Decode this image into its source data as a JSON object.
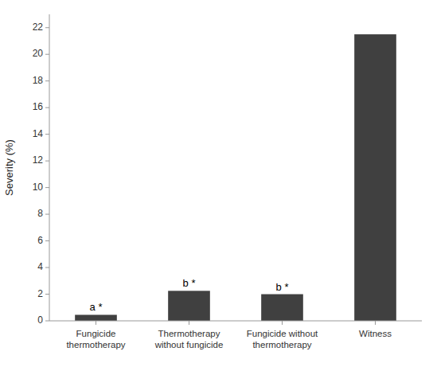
{
  "chart_data": {
    "type": "bar",
    "categories": [
      "Fungicide\nthermotherapy",
      "Thermotherapy\nwithout fungicide",
      "Fungicide without\nthermotherapy",
      "Witness"
    ],
    "values": [
      0.45,
      2.25,
      2.0,
      21.5
    ],
    "annotations": [
      "a *",
      "b *",
      "b *",
      null
    ],
    "color": "#404040",
    "ylabel": "Severity (%)",
    "ylim": [
      0,
      23
    ],
    "yticks": [
      0,
      2,
      4,
      6,
      8,
      10,
      12,
      14,
      16,
      18,
      20,
      22
    ],
    "grid": false
  }
}
